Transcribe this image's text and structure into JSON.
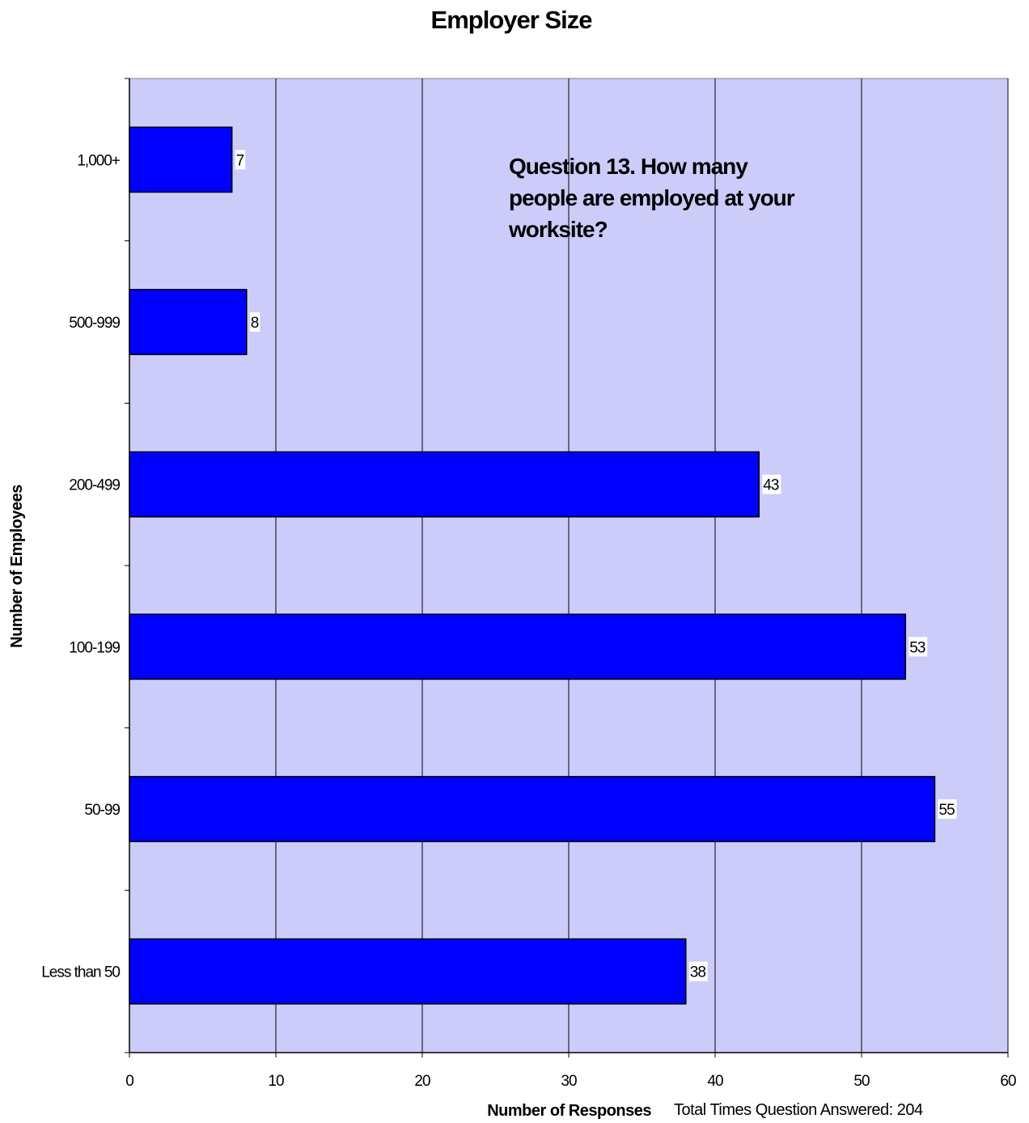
{
  "chart_data": {
    "type": "bar",
    "orientation": "horizontal",
    "title": "Employer Size",
    "xlabel": "Number of Responses",
    "ylabel": "Number of Employees",
    "categories": [
      "1,000+",
      "500-999",
      "200-499",
      "100-199",
      "50-99",
      "Less than 50"
    ],
    "values": [
      7,
      8,
      43,
      53,
      55,
      38
    ],
    "xlim": [
      0,
      60
    ],
    "xticks": [
      "0",
      "10",
      "20",
      "30",
      "40",
      "50",
      "60"
    ],
    "grid": true,
    "annotation": [
      "Question 13.  How many",
      "people are employed at your",
      "worksite?"
    ],
    "footnote": "Total Times Question Answered:  204",
    "colors": {
      "plot_background": "#ccccfa",
      "bar_fill": "#0000ff",
      "bar_stroke": "#000000",
      "grid": "#000000"
    }
  }
}
